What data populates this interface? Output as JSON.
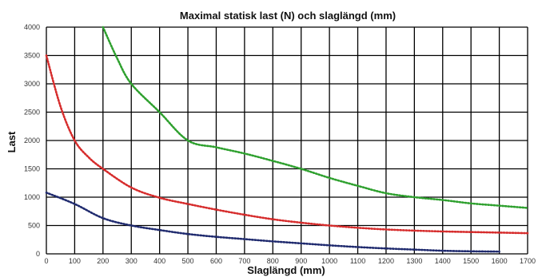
{
  "chart_data": {
    "type": "line",
    "title": "Maximal statisk last (N) och slaglängd (mm)",
    "xlabel": "Slaglängd (mm)",
    "ylabel": "Last",
    "xlim": [
      0,
      1700
    ],
    "ylim": [
      0,
      4000
    ],
    "x_ticks": [
      0,
      100,
      200,
      300,
      400,
      500,
      600,
      700,
      800,
      900,
      1000,
      1100,
      1200,
      1300,
      1400,
      1500,
      1600,
      1700
    ],
    "y_ticks": [
      0,
      500,
      1000,
      1500,
      2000,
      2500,
      3000,
      3500,
      4000
    ],
    "grid": true,
    "legend": "none",
    "series": [
      {
        "color": "#2ea02e",
        "points": [
          [
            200,
            4000
          ],
          [
            250,
            3450
          ],
          [
            300,
            3000
          ],
          [
            400,
            2500
          ],
          [
            500,
            2000
          ],
          [
            600,
            1880
          ],
          [
            700,
            1770
          ],
          [
            800,
            1640
          ],
          [
            900,
            1500
          ],
          [
            1000,
            1340
          ],
          [
            1100,
            1200
          ],
          [
            1200,
            1070
          ],
          [
            1300,
            1000
          ],
          [
            1400,
            950
          ],
          [
            1500,
            890
          ],
          [
            1600,
            850
          ],
          [
            1700,
            810
          ]
        ]
      },
      {
        "color": "#d62c2c",
        "points": [
          [
            0,
            3500
          ],
          [
            50,
            2600
          ],
          [
            100,
            2000
          ],
          [
            150,
            1700
          ],
          [
            200,
            1500
          ],
          [
            300,
            1170
          ],
          [
            400,
            990
          ],
          [
            500,
            880
          ],
          [
            600,
            780
          ],
          [
            700,
            690
          ],
          [
            800,
            610
          ],
          [
            900,
            550
          ],
          [
            1000,
            500
          ],
          [
            1100,
            460
          ],
          [
            1200,
            430
          ],
          [
            1300,
            410
          ],
          [
            1400,
            395
          ],
          [
            1500,
            385
          ],
          [
            1600,
            375
          ],
          [
            1700,
            365
          ]
        ]
      },
      {
        "color": "#1f2a6e",
        "points": [
          [
            0,
            1080
          ],
          [
            100,
            880
          ],
          [
            200,
            630
          ],
          [
            300,
            500
          ],
          [
            400,
            420
          ],
          [
            500,
            350
          ],
          [
            600,
            300
          ],
          [
            700,
            260
          ],
          [
            800,
            220
          ],
          [
            900,
            185
          ],
          [
            1000,
            150
          ],
          [
            1100,
            120
          ],
          [
            1200,
            95
          ],
          [
            1300,
            75
          ],
          [
            1400,
            55
          ],
          [
            1500,
            45
          ],
          [
            1600,
            40
          ]
        ]
      }
    ]
  }
}
